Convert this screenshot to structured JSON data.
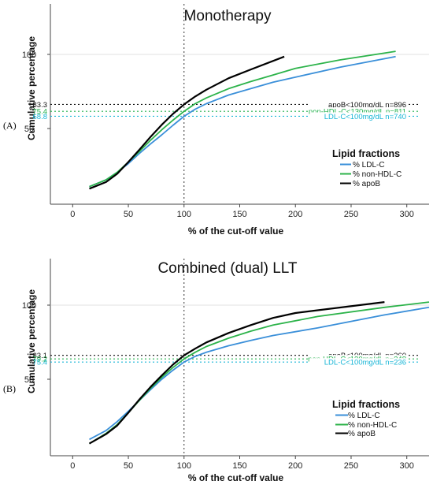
{
  "chart_data": [
    {
      "type": "line",
      "panel_label": "(A)",
      "title": "Monotherapy",
      "xlabel": "% of the cut-off value",
      "ylabel": "Cumulative percentage",
      "xlim": [
        -20,
        320
      ],
      "x_ticks": [
        0,
        50,
        100,
        150,
        200,
        250,
        300
      ],
      "y_ticks": [
        50,
        100
      ],
      "y_scale": "normal-probability",
      "grid": false,
      "vline_x": 100,
      "legend": {
        "title": "Lipid fractions",
        "position": "bottom-right"
      },
      "reference_lines": [
        {
          "y": 83.3,
          "label": "83.3",
          "text": "apoB<100mg/dL n=896",
          "color": "#111111"
        },
        {
          "y": 75.4,
          "label": "75.4",
          "text": "non-HDL-C<130mg/dL n=811",
          "color": "#22b14c"
        },
        {
          "y": 68.8,
          "label": "68.8",
          "text": "LDL-C<100mg/dL n=740",
          "color": "#17b5d6"
        }
      ],
      "series": [
        {
          "name": "% LDL-C",
          "color": "#3a8fd9",
          "x": [
            15,
            30,
            40,
            50,
            60,
            70,
            80,
            90,
            100,
            110,
            120,
            140,
            160,
            180,
            200,
            240,
            290
          ],
          "y": [
            1,
            2,
            4,
            8,
            16,
            27,
            40,
            55,
            68.8,
            78,
            84,
            91,
            94.5,
            96.8,
            98,
            99.3,
            99.8
          ]
        },
        {
          "name": "% non-HDL-C",
          "color": "#2cb34a",
          "x": [
            15,
            30,
            40,
            50,
            60,
            70,
            80,
            90,
            100,
            110,
            120,
            140,
            160,
            180,
            200,
            240,
            290
          ],
          "y": [
            1,
            2,
            4,
            9,
            18,
            32,
            48,
            63,
            75.4,
            84,
            89,
            94.5,
            97,
            98.4,
            99.2,
            99.7,
            99.9
          ]
        },
        {
          "name": "% apoB",
          "color": "#000000",
          "x": [
            15,
            30,
            40,
            50,
            60,
            70,
            80,
            90,
            100,
            110,
            120,
            140,
            160,
            190
          ],
          "y": [
            0.8,
            1.6,
            3.5,
            9,
            20,
            37,
            56,
            72,
            83.3,
            90,
            94,
            97.8,
            99.1,
            99.8
          ]
        }
      ]
    },
    {
      "type": "line",
      "panel_label": "(B)",
      "title": "Combined (dual) LLT",
      "xlabel": "% of the cut-off value",
      "ylabel": "Cumulative percentage",
      "xlim": [
        -20,
        320
      ],
      "x_ticks": [
        0,
        50,
        100,
        150,
        200,
        250,
        300
      ],
      "y_ticks": [
        50,
        100
      ],
      "y_scale": "normal-probability",
      "grid": false,
      "vline_x": 100,
      "legend": {
        "title": "Lipid fractions",
        "position": "bottom-right"
      },
      "reference_lines": [
        {
          "y": 83.1,
          "label": "83.1",
          "text": "apoB<100mg/dL n=260",
          "color": "#111111"
        },
        {
          "y": 79.2,
          "label": "79.2",
          "text": "non-HDL-C<130mg/dL n=248",
          "color": "#22b14c"
        },
        {
          "y": 75.4,
          "label": "75.4",
          "text": "LDL-C<100mg/dL n=236",
          "color": "#17b5d6"
        }
      ],
      "series": [
        {
          "name": "% LDL-C",
          "color": "#3a8fd9",
          "x": [
            15,
            30,
            40,
            50,
            60,
            70,
            80,
            90,
            100,
            110,
            120,
            140,
            160,
            180,
            220,
            280,
            320
          ],
          "y": [
            0.8,
            2,
            4.5,
            10,
            20,
            34,
            50,
            64,
            75.4,
            82,
            86,
            91,
            94,
            96,
            98,
            99.5,
            99.8
          ]
        },
        {
          "name": "% non-HDL-C",
          "color": "#2cb34a",
          "x": [
            15,
            30,
            40,
            50,
            60,
            70,
            80,
            90,
            100,
            110,
            120,
            140,
            160,
            180,
            220,
            280,
            320
          ],
          "y": [
            0.5,
            1.5,
            3.5,
            9,
            20,
            36,
            53,
            68,
            79.2,
            86,
            90.5,
            95,
            97.3,
            98.5,
            99.4,
            99.8,
            99.9
          ]
        },
        {
          "name": "% apoB",
          "color": "#000000",
          "x": [
            15,
            30,
            40,
            50,
            60,
            70,
            80,
            90,
            100,
            110,
            120,
            140,
            160,
            180,
            200,
            280
          ],
          "y": [
            0.5,
            1.4,
            3.2,
            9,
            21,
            38,
            56,
            72,
            83.1,
            89,
            93,
            96.8,
            98.5,
            99.3,
            99.6,
            99.9
          ]
        }
      ]
    }
  ]
}
